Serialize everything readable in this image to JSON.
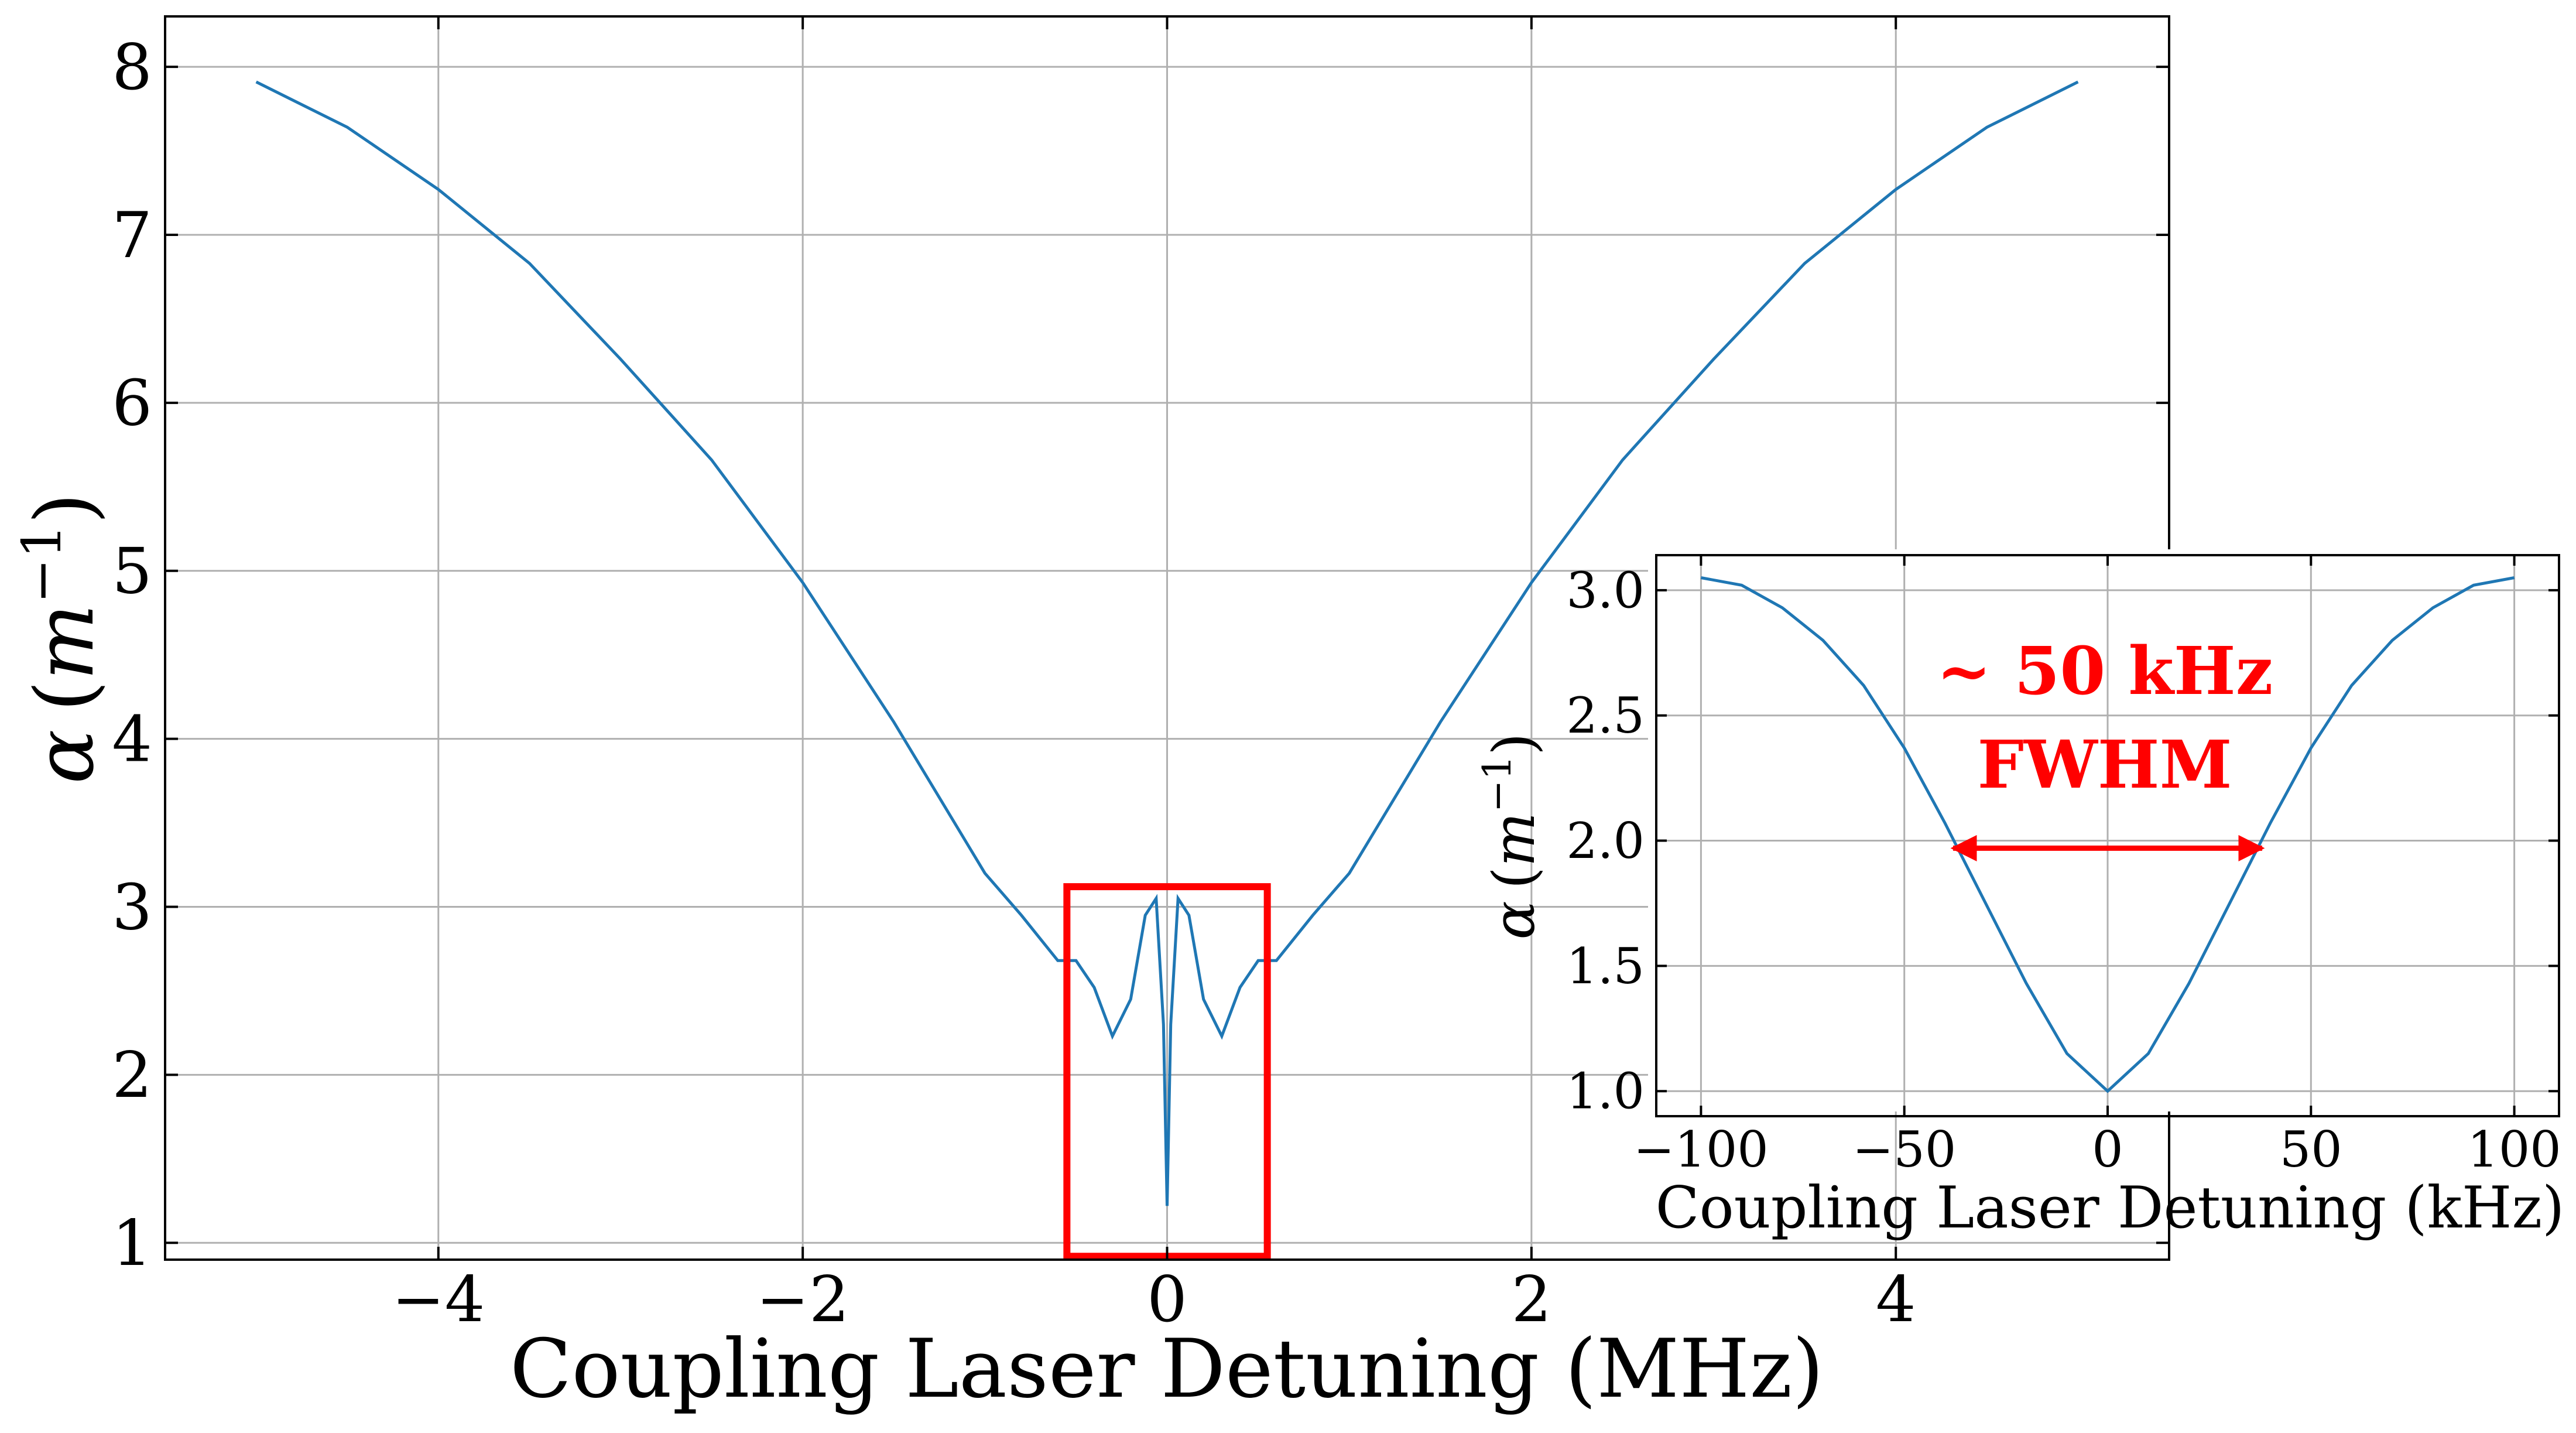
{
  "chart_data": [
    {
      "type": "line",
      "title": "",
      "xlabel": "Coupling Laser Detuning (MHz)",
      "ylabel_symbol": "α",
      "ylabel_unit_open": "(",
      "ylabel_unit_base": "m",
      "ylabel_unit_exp": "−1",
      "ylabel_unit_close": ")",
      "xlim": [
        -5.5,
        5.5
      ],
      "ylim": [
        0.9,
        8.3
      ],
      "xticks": [
        -4,
        -2,
        0,
        2,
        4
      ],
      "xtick_labels": [
        "−4",
        "−2",
        "0",
        "2",
        "4"
      ],
      "yticks": [
        1,
        2,
        3,
        4,
        5,
        6,
        7,
        8
      ],
      "ytick_labels": [
        "1",
        "2",
        "3",
        "4",
        "5",
        "6",
        "7",
        "8"
      ],
      "grid": true,
      "line_color": "#1f77b4",
      "series": [
        {
          "x": [
            -5.0,
            -4.5,
            -4.0,
            -3.5,
            -3.0,
            -2.5,
            -2.0,
            -1.5,
            -1.0,
            -0.8,
            -0.6,
            -0.5,
            -0.4,
            -0.3,
            -0.2,
            -0.12,
            -0.06,
            -0.02,
            0.0,
            0.02,
            0.06,
            0.12,
            0.2,
            0.3,
            0.4,
            0.5,
            0.6,
            0.8,
            1.0,
            1.5,
            2.0,
            2.5,
            3.0,
            3.5,
            4.0,
            4.5,
            5.0
          ],
          "y": [
            7.91,
            7.64,
            7.27,
            6.83,
            6.26,
            5.66,
            4.93,
            4.1,
            3.2,
            2.95,
            2.68,
            2.68,
            2.52,
            2.23,
            2.45,
            2.95,
            3.05,
            2.3,
            1.22,
            2.3,
            3.05,
            2.95,
            2.45,
            2.23,
            2.52,
            2.68,
            2.68,
            2.95,
            3.2,
            4.1,
            4.93,
            5.66,
            6.26,
            6.83,
            7.27,
            7.64,
            7.91
          ]
        }
      ],
      "highlight_box": {
        "x_range": [
          -0.55,
          0.55
        ],
        "y_range": [
          0.92,
          3.12
        ],
        "color": "#ff0000"
      }
    },
    {
      "type": "line",
      "title": "",
      "xlabel": "Coupling Laser Detuning (kHz)",
      "ylabel_symbol": "α",
      "ylabel_unit_open": "(",
      "ylabel_unit_base": "m",
      "ylabel_unit_exp": "−1",
      "ylabel_unit_close": ")",
      "xlim": [
        -111,
        111
      ],
      "ylim": [
        0.9,
        3.14
      ],
      "xticks": [
        -100,
        -50,
        0,
        50,
        100
      ],
      "xtick_labels": [
        "−100",
        "−50",
        "0",
        "50",
        "100"
      ],
      "yticks": [
        1.0,
        1.5,
        2.0,
        2.5,
        3.0
      ],
      "ytick_labels": [
        "1.0",
        "1.5",
        "2.0",
        "2.5",
        "3.0"
      ],
      "grid": true,
      "line_color": "#1f77b4",
      "series": [
        {
          "x": [
            -100,
            -90,
            -80,
            -70,
            -60,
            -50,
            -40,
            -30,
            -20,
            -10,
            0,
            10,
            20,
            30,
            40,
            50,
            60,
            70,
            80,
            90,
            100
          ],
          "y": [
            3.05,
            3.02,
            2.93,
            2.8,
            2.62,
            2.37,
            2.07,
            1.75,
            1.43,
            1.15,
            1.0,
            1.15,
            1.43,
            1.75,
            2.07,
            2.37,
            2.62,
            2.8,
            2.93,
            3.02,
            3.05
          ]
        }
      ],
      "annotation": {
        "line1": "~ 50 kHz",
        "line2": "FWHM",
        "color": "#ff0000",
        "arrow_x": [
          -38,
          38
        ],
        "arrow_y": 1.97
      }
    }
  ]
}
